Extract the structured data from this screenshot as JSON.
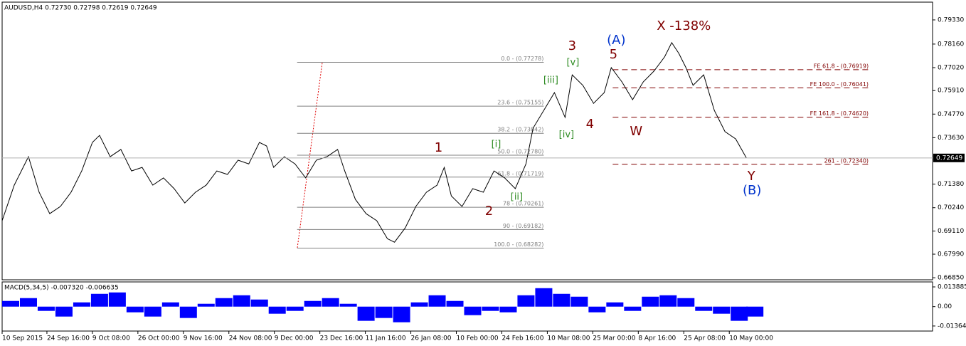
{
  "chart_data": [
    {
      "type": "line",
      "title": "AUDUSD,H4  0.72730 0.72798 0.72619 0.72649",
      "color": "#000000",
      "x": [
        0,
        17,
        37,
        52,
        67,
        82,
        97,
        112,
        127,
        137,
        152,
        167,
        182,
        197,
        212,
        227,
        242,
        257,
        272,
        287,
        302,
        317,
        332,
        347,
        362,
        372,
        382,
        397,
        412,
        427,
        442,
        457,
        472,
        482,
        497,
        512,
        527,
        542,
        552,
        567,
        582,
        597,
        612,
        622,
        632,
        647,
        662,
        677,
        692,
        707,
        722,
        737,
        747,
        762,
        777,
        792,
        802,
        817,
        832,
        847,
        857,
        872,
        887,
        902,
        917,
        932,
        942,
        952,
        962,
        972,
        987,
        1002,
        1017,
        1032,
        1047
      ],
      "values": [
        0.6961,
        0.7133,
        0.7271,
        0.7099,
        0.6995,
        0.703,
        0.7099,
        0.7202,
        0.734,
        0.7374,
        0.7271,
        0.7306,
        0.7202,
        0.7219,
        0.7133,
        0.7168,
        0.7116,
        0.7047,
        0.7099,
        0.7133,
        0.7202,
        0.7185,
        0.7254,
        0.7236,
        0.734,
        0.7323,
        0.7219,
        0.7271,
        0.7236,
        0.7168,
        0.7254,
        0.7271,
        0.7306,
        0.7202,
        0.7064,
        0.6995,
        0.6961,
        0.6874,
        0.6857,
        0.6926,
        0.703,
        0.7099,
        0.7133,
        0.7219,
        0.7081,
        0.703,
        0.7116,
        0.7099,
        0.7202,
        0.7168,
        0.7116,
        0.7236,
        0.7409,
        0.7495,
        0.7581,
        0.7461,
        0.7667,
        0.7616,
        0.7529,
        0.7581,
        0.7702,
        0.7633,
        0.7547,
        0.7633,
        0.7685,
        0.7754,
        0.7823,
        0.7771,
        0.7702,
        0.7616,
        0.7667,
        0.7495,
        0.7392,
        0.7357,
        0.7265
      ],
      "xlim": [
        0,
        1309
      ],
      "xticks": [
        {
          "value": 0,
          "label": "10 Sep 2015"
        },
        {
          "value": 63,
          "label": "24 Sep 16:00"
        },
        {
          "value": 127,
          "label": "9 Oct 08:00"
        },
        {
          "value": 191,
          "label": "26 Oct 00:00"
        },
        {
          "value": 255,
          "label": "9 Nov 16:00"
        },
        {
          "value": 319,
          "label": "24 Nov 08:00"
        },
        {
          "value": 383,
          "label": "9 Dec 00:00"
        },
        {
          "value": 447,
          "label": "23 Dec 16:00"
        },
        {
          "value": 511,
          "label": "11 Jan 16:00"
        },
        {
          "value": 575,
          "label": "26 Jan 08:00"
        },
        {
          "value": 639,
          "label": "10 Feb 00:00"
        },
        {
          "value": 703,
          "label": "24 Feb 16:00"
        },
        {
          "value": 767,
          "label": "10 Mar 08:00"
        },
        {
          "value": 831,
          "label": "25 Mar 00:00"
        },
        {
          "value": 895,
          "label": "8 Apr 16:00"
        },
        {
          "value": 959,
          "label": "25 Apr 08:00"
        },
        {
          "value": 1023,
          "label": "10 May 00:00"
        }
      ],
      "ylim": [
        0.6675,
        0.8019
      ],
      "yticks": [
        {
          "value": 0.7933,
          "label": "0.79330"
        },
        {
          "value": 0.7816,
          "label": "0.78160"
        },
        {
          "value": 0.7702,
          "label": "0.77020"
        },
        {
          "value": 0.7591,
          "label": "0.75910"
        },
        {
          "value": 0.7477,
          "label": "0.74770"
        },
        {
          "value": 0.7363,
          "label": "0.73630"
        },
        {
          "value": 0.7138,
          "label": "0.71380"
        },
        {
          "value": 0.7024,
          "label": "0.70240"
        },
        {
          "value": 0.6911,
          "label": "0.69110"
        },
        {
          "value": 0.6799,
          "label": "0.67990"
        },
        {
          "value": 0.6685,
          "label": "0.66850"
        }
      ],
      "last_price": 0.72649,
      "fib": {
        "color": "#808080",
        "x_start": 415,
        "x_end": 762,
        "levels": [
          {
            "label": "0.0 - (0.77278)",
            "value": 0.77278
          },
          {
            "label": "23.6 - (0.75155)",
            "value": 0.75155
          },
          {
            "label": "38.2 - (0.73842)",
            "value": 0.73842
          },
          {
            "label": "50.0 - (0.72780)",
            "value": 0.7278
          },
          {
            "label": "61.8 - (0.71719)",
            "value": 0.71719
          },
          {
            "label": "78 - (0.70261)",
            "value": 0.70261
          },
          {
            "label": "90 - (0.69182)",
            "value": 0.69182
          },
          {
            "label": "100.0 - (0.68282)",
            "value": 0.68282
          }
        ]
      },
      "expansion": {
        "color": "#800000",
        "x_start": 859,
        "x_end": 1219,
        "levels": [
          {
            "label": "FE 61.8 - (0.76919)",
            "value": 0.76919
          },
          {
            "label": "FE 100.0 - (0.76041)",
            "value": 0.76041
          },
          {
            "label": "FE 161.8 - (0.74620)",
            "value": 0.7462
          },
          {
            "label": "261 - (0.72340)",
            "value": 0.7234
          }
        ]
      },
      "annotations": [
        {
          "text": "1",
          "color": "#800000",
          "x": 614,
          "y": 0.7312
        },
        {
          "text": "2",
          "color": "#800000",
          "x": 685,
          "y": 0.7005
        },
        {
          "text": "3",
          "color": "#800000",
          "x": 802,
          "y": 0.7805
        },
        {
          "text": "4",
          "color": "#800000",
          "x": 827,
          "y": 0.7426
        },
        {
          "text": "5",
          "color": "#800000",
          "x": 860,
          "y": 0.7764
        },
        {
          "text": "(A)",
          "color": "#0033cc",
          "x": 864,
          "y": 0.7833
        },
        {
          "text": "X -138%",
          "color": "#800000",
          "x": 959,
          "y": 0.7902
        },
        {
          "text": "W",
          "color": "#800000",
          "x": 892,
          "y": 0.7391
        },
        {
          "text": "Y",
          "color": "#800000",
          "x": 1054,
          "y": 0.7174
        },
        {
          "text": "(B)",
          "color": "#0033cc",
          "x": 1055,
          "y": 0.7105
        },
        {
          "text": "[i]",
          "color": "#2e8b22",
          "x": 695,
          "y": 0.7329
        },
        {
          "text": "[ii]",
          "color": "#2e8b22",
          "x": 724,
          "y": 0.7074
        },
        {
          "text": "[iii]",
          "color": "#2e8b22",
          "x": 772,
          "y": 0.764
        },
        {
          "text": "[iv]",
          "color": "#2e8b22",
          "x": 794,
          "y": 0.7377
        },
        {
          "text": "[v]",
          "color": "#2e8b22",
          "x": 803,
          "y": 0.7726
        }
      ]
    },
    {
      "type": "bar",
      "title": "MACD(5,34,5) -0.007320 -0.006635",
      "color": "#0000ff",
      "x": [
        0,
        25,
        50,
        75,
        100,
        125,
        150,
        175,
        200,
        225,
        250,
        275,
        300,
        325,
        350,
        375,
        400,
        425,
        450,
        475,
        500,
        525,
        550,
        575,
        600,
        625,
        650,
        675,
        700,
        725,
        750,
        775,
        800,
        825,
        850,
        875,
        900,
        925,
        950,
        975,
        1000,
        1025,
        1047
      ],
      "values": [
        0.004,
        0.006,
        -0.003,
        -0.007,
        0.003,
        0.009,
        0.01,
        -0.004,
        -0.007,
        0.003,
        -0.008,
        0.002,
        0.006,
        0.008,
        0.005,
        -0.005,
        -0.003,
        0.004,
        0.006,
        0.002,
        -0.01,
        -0.008,
        -0.011,
        0.003,
        0.008,
        0.004,
        -0.006,
        -0.003,
        -0.004,
        0.008,
        0.013,
        0.009,
        0.007,
        -0.004,
        0.003,
        -0.003,
        0.007,
        0.008,
        0.006,
        -0.003,
        -0.005,
        -0.01,
        -0.007
      ],
      "xlim": [
        0,
        1309
      ],
      "ylim": [
        -0.0172,
        0.0174
      ],
      "yticks": [
        0.013885,
        {
          "value": 0,
          "label": "0.00"
        },
        -0.013645
      ]
    }
  ]
}
